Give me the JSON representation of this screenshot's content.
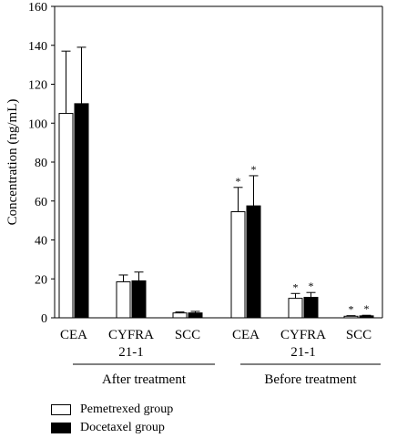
{
  "chart_data": {
    "type": "bar",
    "ylabel": "Concentration (ng/mL)",
    "ylim": [
      0,
      160
    ],
    "yticks": [
      0,
      20,
      40,
      60,
      80,
      100,
      120,
      140,
      160
    ],
    "groups": [
      {
        "label": "After treatment",
        "categories": [
          "CEA",
          "CYFRA 21-1",
          "SCC"
        ],
        "category_lines": [
          [
            "CEA"
          ],
          [
            "CYFRA",
            "21-1"
          ],
          [
            "SCC"
          ]
        ],
        "series": [
          {
            "name": "Pemetrexed group",
            "values": [
              105,
              18.5,
              2.5
            ],
            "errors": [
              32,
              3.5,
              0.5
            ],
            "sig": [
              false,
              false,
              false
            ]
          },
          {
            "name": "Docetaxel group",
            "values": [
              110,
              19,
              2.5
            ],
            "errors": [
              29,
              4.5,
              0.8
            ],
            "sig": [
              false,
              false,
              false
            ]
          }
        ]
      },
      {
        "label": "Before treatment",
        "categories": [
          "CEA",
          "CYFRA 21-1",
          "SCC"
        ],
        "category_lines": [
          [
            "CEA"
          ],
          [
            "CYFRA",
            "21-1"
          ],
          [
            "SCC"
          ]
        ],
        "series": [
          {
            "name": "Pemetrexed group",
            "values": [
              54.5,
              10,
              0.8
            ],
            "errors": [
              12.5,
              2.5,
              0.3
            ],
            "sig": [
              true,
              true,
              true
            ]
          },
          {
            "name": "Docetaxel group",
            "values": [
              57.5,
              10.5,
              1
            ],
            "errors": [
              15.5,
              2.5,
              0.3
            ],
            "sig": [
              true,
              true,
              true
            ]
          }
        ]
      }
    ],
    "significance_marker": "*",
    "legend": {
      "placement": "bottom-left",
      "items": [
        {
          "name": "Pemetrexed group",
          "fill": "#ffffff",
          "stroke": "#000000"
        },
        {
          "name": "Docetaxel group",
          "fill": "#000000",
          "stroke": "#000000"
        }
      ]
    }
  }
}
